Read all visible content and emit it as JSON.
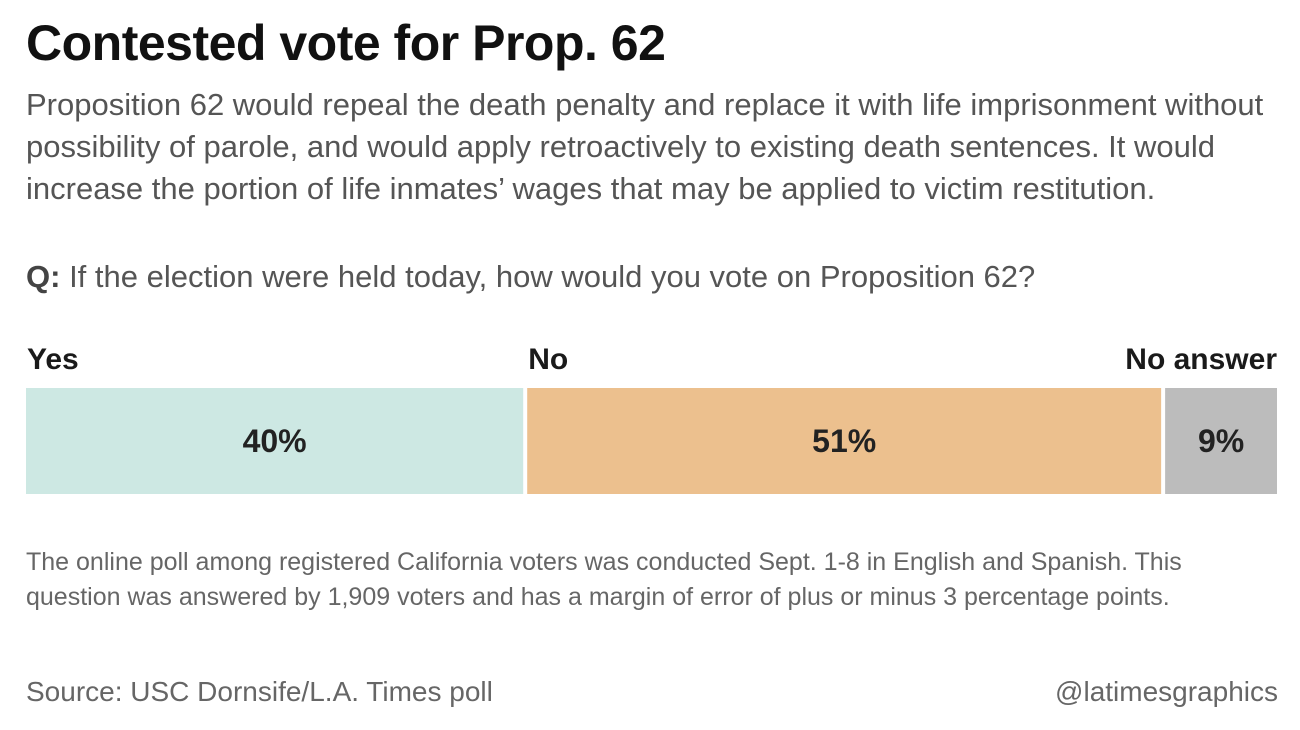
{
  "title": "Contested vote for Prop. 62",
  "description": "Proposition 62 would repeal the death penalty and replace it with life imprisonment without possibility of parole, and would apply retroactively to existing death sentences. It would increase the portion of life inmates’ wages that may be applied to victim restitution.",
  "question": {
    "prefix": "Q:",
    "text": "If the election were held today, how would you vote on Proposition 62?"
  },
  "chart_data": {
    "type": "bar",
    "orientation": "horizontal-stacked",
    "categories": [
      "Yes",
      "No",
      "No answer"
    ],
    "values": [
      40,
      51,
      9
    ],
    "value_labels": [
      "40%",
      "51%",
      "9%"
    ],
    "colors": [
      "#cde8e3",
      "#ecc08e",
      "#bcbcbc"
    ],
    "unit": "%",
    "xlim": [
      0,
      100
    ],
    "grid": false,
    "legend": "none"
  },
  "note": "The online poll among registered California voters was conducted Sept. 1-8 in English and Spanish. This question was answered by 1,909 voters and has a margin of error of plus or minus 3 percentage points.",
  "source": "Source: USC Dornsife/L.A. Times poll",
  "credit": "@latimesgraphics"
}
